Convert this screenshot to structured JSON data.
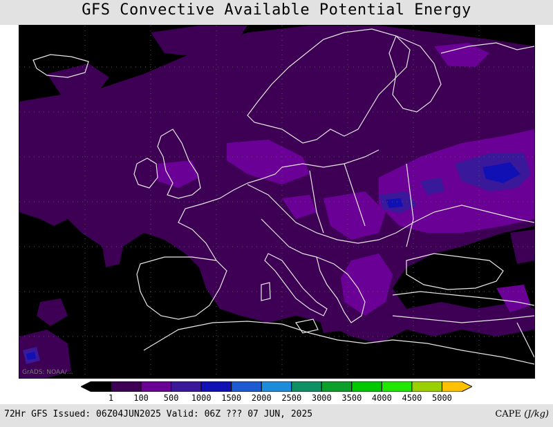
{
  "title": "GFS Convective Available Potential Energy",
  "credit": "GrADS: NOAA/…",
  "footer": {
    "issue_info": "72Hr GFS Issued: 06Z04JUN2025 Valid: 06Z ??? 07 JUN, 2025",
    "variable": "CAPE",
    "unit": "(J/kg)"
  },
  "colorbar": {
    "labels": [
      "1",
      "100",
      "500",
      "1000",
      "1500",
      "2000",
      "2500",
      "3000",
      "3500",
      "4000",
      "4500",
      "5000"
    ],
    "colors": [
      "#000000",
      "#3d0055",
      "#6a0096",
      "#3a189a",
      "#1010b4",
      "#1e5ad2",
      "#1e8cdc",
      "#0f8f64",
      "#0ca02a",
      "#00c800",
      "#20e600",
      "#9ad000",
      "#ffc000"
    ]
  },
  "map": {
    "region": "Europe",
    "colors": {
      "background": "#000000",
      "cape_low": "#3d0055",
      "cape_mid": "#6a0096",
      "cape_high": "#3a189a",
      "cape_peak": "#1010b4",
      "coastline": "#e8e8e8"
    }
  }
}
